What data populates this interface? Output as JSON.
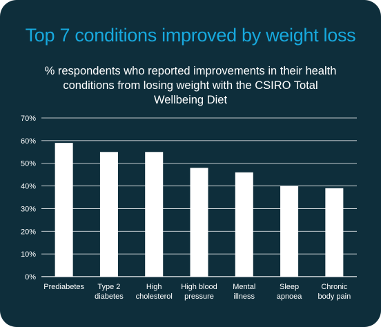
{
  "chart_data": {
    "type": "bar",
    "title": "Top 7 conditions improved by weight loss",
    "subtitle": "% respondents who reported improvements in their health conditions from losing weight with the CSIRO Total Wellbeing Diet",
    "categories": [
      [
        "Prediabetes"
      ],
      [
        "Type 2",
        "diabetes"
      ],
      [
        "High",
        "cholesterol"
      ],
      [
        "High blood",
        "pressure"
      ],
      [
        "Mental",
        "illness"
      ],
      [
        "Sleep",
        "apnoea"
      ],
      [
        "Chronic",
        "body pain"
      ]
    ],
    "values": [
      59,
      55,
      55,
      48,
      46,
      40,
      39
    ],
    "ylim": [
      0,
      70
    ],
    "yticks": [
      0,
      10,
      20,
      30,
      40,
      50,
      60,
      70
    ],
    "ytick_labels": [
      "0%",
      "10%",
      "20%",
      "30%",
      "40%",
      "50%",
      "60%",
      "70%"
    ],
    "grid": true,
    "colors": {
      "background": "#0e2e3b",
      "title": "#17a9de",
      "bar": "#ffffff",
      "text": "#ffffff"
    }
  }
}
